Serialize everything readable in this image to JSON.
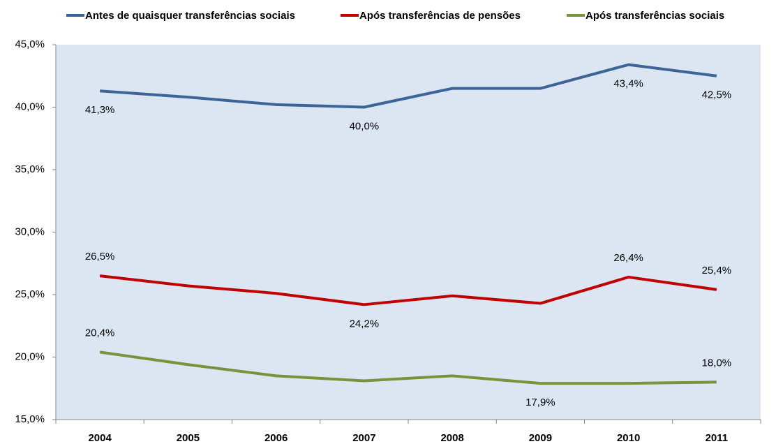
{
  "chart_data": {
    "type": "line",
    "categories": [
      "2004",
      "2005",
      "2006",
      "2007",
      "2008",
      "2009",
      "2010",
      "2011"
    ],
    "series": [
      {
        "name": "Antes de quaisquer transferências sociais",
        "color": "#3c6496",
        "values": [
          41.3,
          40.8,
          40.2,
          40.0,
          41.5,
          41.5,
          43.4,
          42.5
        ],
        "value_labels": [
          "41,3%",
          null,
          null,
          "40,0%",
          null,
          null,
          "43,4%",
          "42,5%"
        ]
      },
      {
        "name": "Após transferências de pensões",
        "color": "#c00000",
        "values": [
          26.5,
          25.7,
          25.1,
          24.2,
          24.9,
          24.3,
          26.4,
          25.4
        ],
        "value_labels": [
          "26,5%",
          null,
          null,
          "24,2%",
          null,
          null,
          "26,4%",
          "25,4%"
        ]
      },
      {
        "name": "Após transferências sociais",
        "color": "#77933c",
        "values": [
          20.4,
          19.4,
          18.5,
          18.1,
          18.5,
          17.9,
          17.9,
          18.0
        ],
        "value_labels": [
          "20,4%",
          null,
          null,
          null,
          null,
          "17,9%",
          null,
          "18,0%"
        ]
      }
    ],
    "ylim": [
      15,
      45
    ],
    "yticks": [
      {
        "value": 15,
        "label": "15,0%"
      },
      {
        "value": 20,
        "label": "20,0%"
      },
      {
        "value": 25,
        "label": "25,0%"
      },
      {
        "value": 30,
        "label": "30,0%"
      },
      {
        "value": 35,
        "label": "35,0%"
      },
      {
        "value": 40,
        "label": "40,0%"
      },
      {
        "value": 45,
        "label": "45,0%"
      }
    ],
    "grid": false,
    "legend": "top",
    "background": "#dce6f2"
  }
}
